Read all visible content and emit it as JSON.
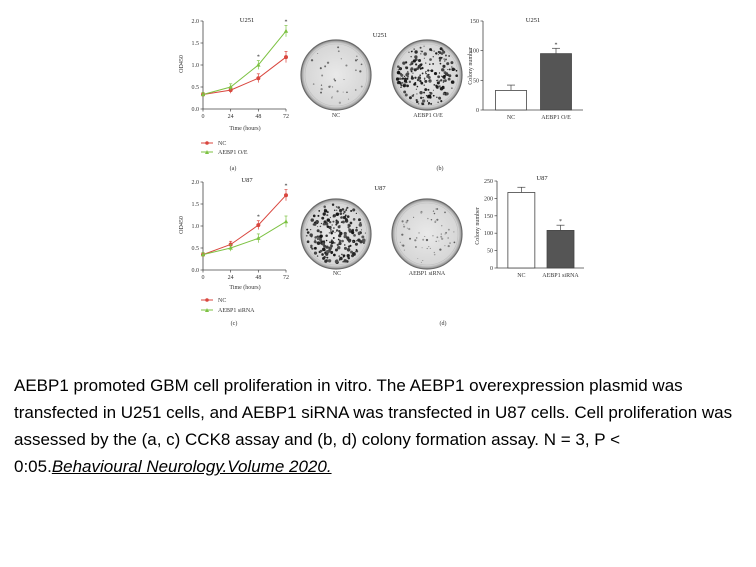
{
  "panel_a": {
    "title": "U251",
    "ylabel": "OD450",
    "xlabel": "Time (hours)",
    "panel_label": "(a)",
    "legend": [
      "NC",
      "AEBP1 O/E"
    ],
    "star": "*"
  },
  "panel_b": {
    "title": "U251",
    "panel_label": "(b)",
    "plate_labels": [
      "NC",
      "AEBP1 O/E"
    ]
  },
  "panel_c": {
    "title": "U87",
    "ylabel": "OD450",
    "xlabel": "Time (hours)",
    "panel_label": "(c)",
    "legend": [
      "NC",
      "AEBP1 siRNA"
    ],
    "star": "*"
  },
  "panel_d": {
    "title": "U87",
    "panel_label": "(d)",
    "plate_labels": [
      "NC",
      "AEBP1 siRNA"
    ]
  },
  "colors": {
    "nc": "#d9463e",
    "treated": "#7dc243",
    "bar_dark": "#555555"
  },
  "chart_data": [
    {
      "type": "line",
      "title": "U251",
      "xlabel": "Time (hours)",
      "ylabel": "OD450",
      "x": [
        0,
        24,
        48,
        72
      ],
      "xticks": [
        "0",
        "24",
        "48",
        "72"
      ],
      "ylim": [
        0,
        2.0
      ],
      "yticks": [
        "0.0",
        "0.5",
        "1.0",
        "1.5",
        "2.0"
      ],
      "series": [
        {
          "name": "NC",
          "values": [
            0.33,
            0.43,
            0.7,
            1.18
          ]
        },
        {
          "name": "AEBP1 O/E",
          "values": [
            0.33,
            0.5,
            1.0,
            1.77
          ]
        }
      ]
    },
    {
      "type": "bar",
      "title": "U251",
      "ylabel": "Colony number",
      "categories": [
        "NC",
        "AEBP1 O/E"
      ],
      "values": [
        33,
        95
      ],
      "ylim": [
        0,
        150
      ],
      "yticks": [
        "0",
        "50",
        "100",
        "150"
      ]
    },
    {
      "type": "line",
      "title": "U87",
      "xlabel": "Time (hours)",
      "ylabel": "OD450",
      "x": [
        0,
        24,
        48,
        72
      ],
      "xticks": [
        "0",
        "24",
        "48",
        "72"
      ],
      "ylim": [
        0,
        2.0
      ],
      "yticks": [
        "0.0",
        "0.5",
        "1.0",
        "1.5",
        "2.0"
      ],
      "series": [
        {
          "name": "NC",
          "values": [
            0.35,
            0.58,
            1.02,
            1.7
          ]
        },
        {
          "name": "AEBP1 siRNA",
          "values": [
            0.35,
            0.5,
            0.72,
            1.1
          ]
        }
      ]
    },
    {
      "type": "bar",
      "title": "U87",
      "ylabel": "Colony number",
      "categories": [
        "NC",
        "AEBP1 siRNA"
      ],
      "values": [
        217,
        108
      ],
      "ylim": [
        0,
        250
      ],
      "yticks": [
        "0",
        "50",
        "100",
        "150",
        "200",
        "250"
      ]
    }
  ],
  "caption": {
    "text": "AEBP1 promoted GBM cell proliferation in vitro. The AEBP1 overexpression plasmid was transfected in U251 cells, and AEBP1 siRNA was transfected in U87 cells. Cell proliferation was assessed by the (a, c) CCK8 assay and (b, d) colony formation assay. N = 3,  P < 0:05.",
    "citation": "Behavioural Neurology.Volume 2020."
  }
}
